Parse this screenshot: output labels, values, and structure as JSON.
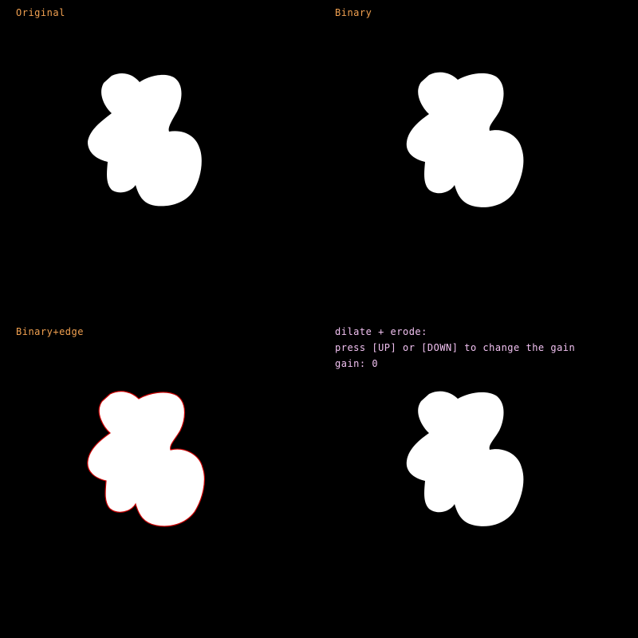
{
  "panels": {
    "original": {
      "title": "Original"
    },
    "binary": {
      "title": "Binary"
    },
    "edge": {
      "title": "Binary+edge"
    },
    "morph": {
      "title": "dilate + erode:",
      "instruction": "press [UP] or [DOWN] to change the gain",
      "gain_label": "gain: 0"
    }
  },
  "colors": {
    "background": "#000000",
    "blob": "#ffffff",
    "edge": "#cc0000",
    "label_orange": "#f0a050",
    "label_pink": "#f0c0f0"
  }
}
